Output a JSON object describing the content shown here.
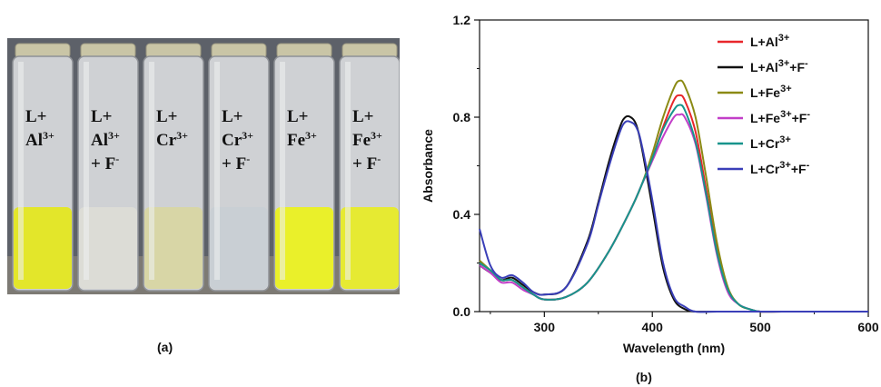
{
  "panel_a": {
    "caption": "(a)",
    "vials": [
      {
        "line1": "L+",
        "ion": "Al",
        "charge": "3+",
        "has_fluoride": false,
        "solution_color": "#e3e62a"
      },
      {
        "line1": "L+",
        "ion": "Al",
        "charge": "3+",
        "has_fluoride": true,
        "solution_color": "#dcdcd6"
      },
      {
        "line1": "L+",
        "ion": "Cr",
        "charge": "3+",
        "has_fluoride": false,
        "solution_color": "#d8d6a6"
      },
      {
        "line1": "L+",
        "ion": "Cr",
        "charge": "3+",
        "has_fluoride": true,
        "solution_color": "#c9cfd4"
      },
      {
        "line1": "L+",
        "ion": "Fe",
        "charge": "3+",
        "has_fluoride": false,
        "solution_color": "#eaf02a"
      },
      {
        "line1": "L+",
        "ion": "Fe",
        "charge": "3+",
        "has_fluoride": true,
        "solution_color": "#e6ea32"
      }
    ],
    "fluoride_text": "+ F",
    "fluoride_sup": "-"
  },
  "panel_b": {
    "caption": "(b)"
  },
  "chart_data": {
    "type": "line",
    "xlabel": "Wavelength (nm)",
    "ylabel": "Absorbance",
    "xlim": [
      240,
      600
    ],
    "ylim": [
      0,
      1.2
    ],
    "x_ticks": [
      300,
      400,
      500,
      600
    ],
    "y_ticks": [
      0.0,
      0.4,
      0.8,
      1.2
    ],
    "y_tick_labels": [
      "0.0",
      "0.4",
      "0.8",
      "1.2"
    ],
    "grid": false,
    "legend_position": "top-right",
    "series": [
      {
        "name": "L+Al",
        "sup": "3+",
        "color": "#e8262b",
        "x": [
          240,
          250,
          260,
          270,
          280,
          290,
          300,
          320,
          340,
          360,
          380,
          390,
          400,
          410,
          420,
          425,
          430,
          440,
          450,
          460,
          470,
          480,
          490,
          500,
          520,
          560,
          600
        ],
        "y": [
          0.2,
          0.17,
          0.13,
          0.13,
          0.1,
          0.07,
          0.05,
          0.06,
          0.12,
          0.25,
          0.42,
          0.52,
          0.63,
          0.76,
          0.87,
          0.89,
          0.87,
          0.74,
          0.5,
          0.25,
          0.09,
          0.03,
          0.01,
          0.0,
          0.0,
          0.0,
          0.0
        ]
      },
      {
        "name": "L+Al",
        "sup": "3+",
        "suffix": "+F",
        "suffix_sup": "-",
        "color": "#111111",
        "x": [
          240,
          250,
          260,
          270,
          280,
          290,
          300,
          320,
          340,
          350,
          360,
          370,
          375,
          380,
          385,
          390,
          400,
          410,
          420,
          430,
          440,
          460,
          500,
          600
        ],
        "y": [
          0.19,
          0.16,
          0.13,
          0.14,
          0.11,
          0.08,
          0.07,
          0.1,
          0.29,
          0.45,
          0.62,
          0.76,
          0.8,
          0.8,
          0.77,
          0.68,
          0.43,
          0.18,
          0.05,
          0.01,
          0.0,
          0.0,
          0.0,
          0.0
        ]
      },
      {
        "name": "L+Fe",
        "sup": "3+",
        "color": "#8b8a14",
        "x": [
          240,
          250,
          260,
          270,
          280,
          290,
          300,
          320,
          340,
          360,
          380,
          390,
          400,
          410,
          420,
          425,
          430,
          440,
          450,
          460,
          470,
          480,
          490,
          500,
          520,
          560,
          600
        ],
        "y": [
          0.21,
          0.17,
          0.13,
          0.13,
          0.1,
          0.07,
          0.05,
          0.06,
          0.12,
          0.25,
          0.42,
          0.52,
          0.65,
          0.8,
          0.92,
          0.95,
          0.93,
          0.8,
          0.55,
          0.28,
          0.1,
          0.03,
          0.01,
          0.0,
          0.0,
          0.0,
          0.0
        ]
      },
      {
        "name": "L+Fe",
        "sup": "3+",
        "suffix": "+F",
        "suffix_sup": "-",
        "color": "#c23ec8",
        "x": [
          240,
          250,
          260,
          270,
          280,
          290,
          300,
          320,
          340,
          360,
          380,
          390,
          400,
          410,
          420,
          425,
          430,
          440,
          450,
          460,
          470,
          480,
          490,
          500,
          520,
          560,
          600
        ],
        "y": [
          0.19,
          0.16,
          0.12,
          0.12,
          0.09,
          0.07,
          0.05,
          0.06,
          0.12,
          0.25,
          0.42,
          0.52,
          0.62,
          0.72,
          0.8,
          0.81,
          0.8,
          0.69,
          0.47,
          0.23,
          0.08,
          0.03,
          0.01,
          0.0,
          0.0,
          0.0,
          0.0
        ]
      },
      {
        "name": "L+Cr",
        "sup": "3+",
        "color": "#17948c",
        "x": [
          240,
          250,
          260,
          270,
          280,
          290,
          300,
          320,
          340,
          360,
          380,
          390,
          400,
          410,
          420,
          425,
          430,
          440,
          450,
          460,
          470,
          480,
          490,
          500,
          520,
          560,
          600
        ],
        "y": [
          0.2,
          0.17,
          0.13,
          0.13,
          0.1,
          0.07,
          0.05,
          0.06,
          0.12,
          0.25,
          0.42,
          0.52,
          0.63,
          0.75,
          0.83,
          0.85,
          0.83,
          0.7,
          0.48,
          0.24,
          0.09,
          0.03,
          0.01,
          0.0,
          0.0,
          0.0,
          0.0
        ]
      },
      {
        "name": "L+Cr",
        "sup": "3+",
        "suffix": "+F",
        "suffix_sup": "-",
        "color": "#3a3fb8",
        "x": [
          240,
          250,
          260,
          270,
          280,
          290,
          300,
          320,
          340,
          350,
          360,
          370,
          375,
          380,
          385,
          390,
          400,
          410,
          420,
          430,
          440,
          460,
          500,
          600
        ],
        "y": [
          0.34,
          0.19,
          0.14,
          0.15,
          0.12,
          0.08,
          0.07,
          0.1,
          0.28,
          0.44,
          0.6,
          0.74,
          0.78,
          0.78,
          0.76,
          0.69,
          0.46,
          0.2,
          0.06,
          0.02,
          0.0,
          0.0,
          0.0,
          0.0
        ]
      }
    ]
  }
}
